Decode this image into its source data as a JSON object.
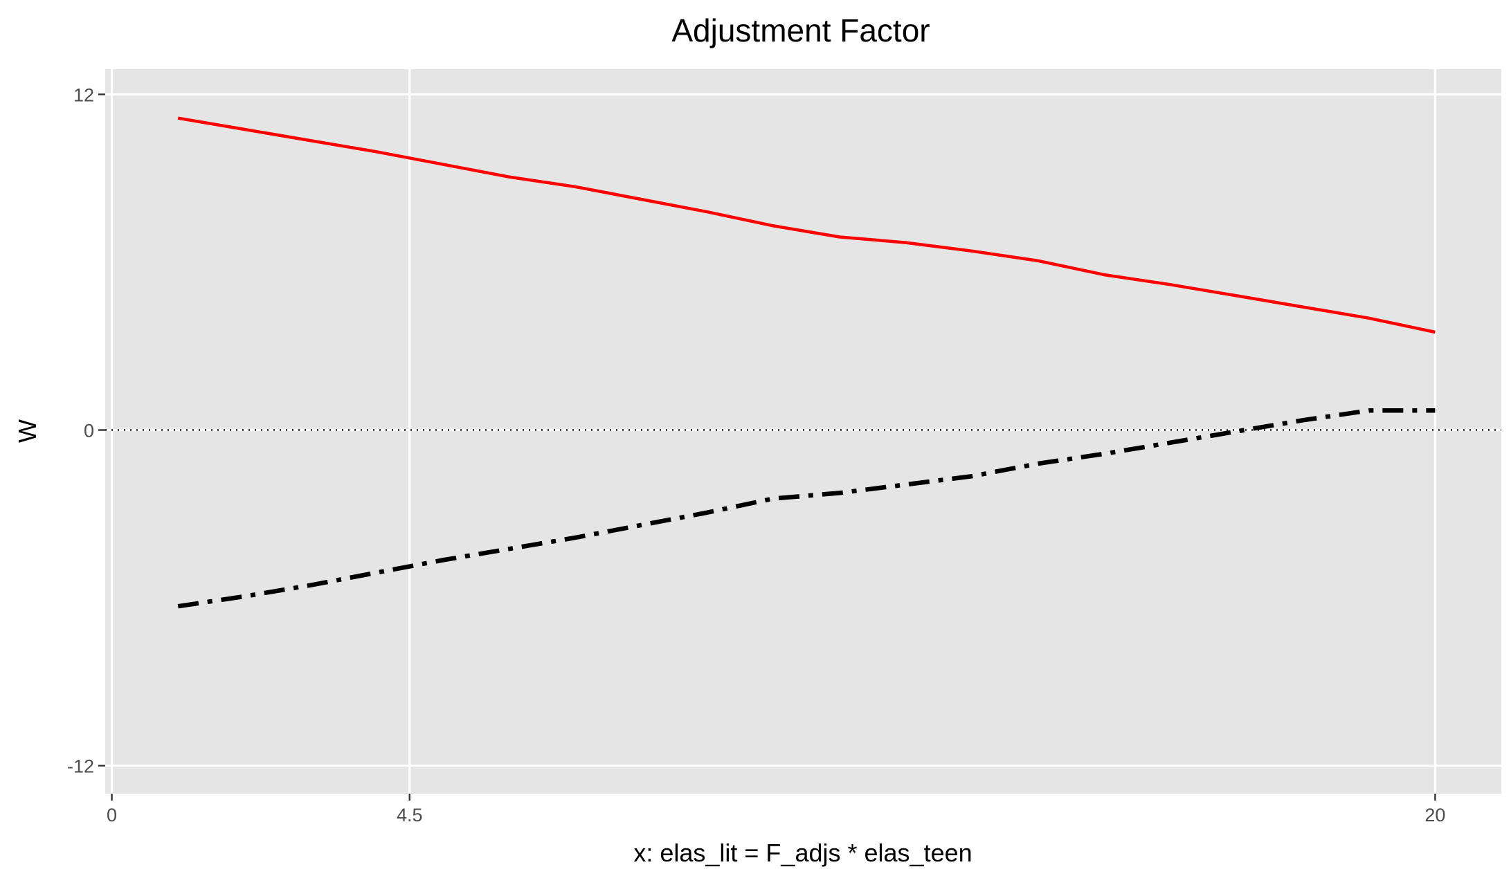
{
  "chart_data": {
    "type": "line",
    "title": "Adjustment Factor",
    "xlabel": "x: elas_lit = F_adjs * elas_teen",
    "ylabel": "W",
    "xlim": [
      -0.1,
      21
    ],
    "ylim": [
      -13,
      12.9
    ],
    "x_ticks": [
      0,
      4.5,
      20
    ],
    "x_tick_labels": [
      "0",
      "4.5",
      "20"
    ],
    "y_ticks": [
      12,
      0,
      -12
    ],
    "y_tick_labels": [
      "12",
      "0",
      "-12"
    ],
    "grid": true,
    "legend": "none",
    "reference_line": {
      "y": 0,
      "style": "dotted",
      "color": "#000000"
    },
    "series": [
      {
        "color": "#ff0000",
        "style": "solid",
        "x": [
          1,
          2,
          3,
          4,
          5,
          6,
          7,
          8,
          9,
          10,
          11,
          12,
          13,
          14,
          15,
          16,
          17,
          18,
          19,
          20
        ],
        "values": [
          11.15,
          10.75,
          10.35,
          9.95,
          9.5,
          9.05,
          8.7,
          8.25,
          7.8,
          7.3,
          6.9,
          6.7,
          6.4,
          6.05,
          5.55,
          5.2,
          4.8,
          4.4,
          4.0,
          3.5
        ]
      },
      {
        "color": "#000000",
        "style": "dashdot",
        "x": [
          1,
          2,
          3,
          4,
          5,
          6,
          7,
          8,
          9,
          10,
          11,
          12,
          13,
          14,
          15,
          16,
          17,
          18,
          19,
          20
        ],
        "values": [
          -6.3,
          -5.95,
          -5.55,
          -5.1,
          -4.65,
          -4.25,
          -3.85,
          -3.4,
          -2.95,
          -2.45,
          -2.25,
          -1.95,
          -1.65,
          -1.2,
          -0.85,
          -0.45,
          -0.05,
          0.35,
          0.7,
          0.7
        ]
      }
    ]
  }
}
